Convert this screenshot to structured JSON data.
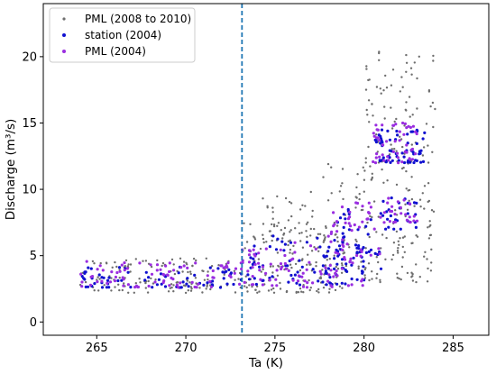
{
  "chart_data": {
    "type": "scatter",
    "xlabel": "Ta (K)",
    "ylabel": "Discharge (m³/s)",
    "xlim": [
      262,
      287
    ],
    "ylim": [
      -1,
      24
    ],
    "xticks": [
      265,
      270,
      275,
      280,
      285
    ],
    "yticks": [
      0,
      5,
      10,
      15,
      20
    ],
    "grid": false,
    "legend_position": "top-left",
    "vline": {
      "x": 273.15,
      "color": "#1f77b4",
      "style": "dashed"
    },
    "series": [
      {
        "name": "PML (2008 to 2010)",
        "color": "#6e6e6e",
        "clusters": [
          {
            "x_range": [
              264,
              273
            ],
            "y_range": [
              2.2,
              4.8
            ],
            "count": 130
          },
          {
            "x_range": [
              273,
              279
            ],
            "y_range": [
              2.2,
              7.5
            ],
            "count": 150
          },
          {
            "x_range": [
              276,
              280
            ],
            "y_range": [
              4,
              12
            ],
            "count": 60
          },
          {
            "x_range": [
              280,
              284
            ],
            "y_range": [
              3,
              21
            ],
            "count": 200
          },
          {
            "x_range": [
              274,
              276
            ],
            "y_range": [
              6,
              10
            ],
            "count": 25
          }
        ]
      },
      {
        "name": "station (2004)",
        "color": "#1010d0",
        "clusters": [
          {
            "x_range": [
              264,
              273
            ],
            "y_range": [
              2.6,
              4.2
            ],
            "count": 70
          },
          {
            "x_range": [
              273,
              280
            ],
            "y_range": [
              2.8,
              6.5
            ],
            "count": 90
          },
          {
            "x_range": [
              278,
              281
            ],
            "y_range": [
              4,
              9
            ],
            "count": 40
          },
          {
            "x_range": [
              280.5,
              283.5
            ],
            "y_range": [
              12,
              14.5
            ],
            "count": 60
          },
          {
            "x_range": [
              281,
              283
            ],
            "y_range": [
              7,
              9.5
            ],
            "count": 25
          }
        ]
      },
      {
        "name": "PML (2004)",
        "color": "#9a2ee0",
        "clusters": [
          {
            "x_range": [
              264,
              273
            ],
            "y_range": [
              2.6,
              4.6
            ],
            "count": 80
          },
          {
            "x_range": [
              273,
              280
            ],
            "y_range": [
              2.6,
              6
            ],
            "count": 90
          },
          {
            "x_range": [
              278,
              281
            ],
            "y_range": [
              5,
              9
            ],
            "count": 40
          },
          {
            "x_range": [
              280.5,
              283
            ],
            "y_range": [
              12,
              15
            ],
            "count": 50
          },
          {
            "x_range": [
              281,
              283
            ],
            "y_range": [
              7.5,
              9.5
            ],
            "count": 25
          }
        ]
      }
    ]
  }
}
